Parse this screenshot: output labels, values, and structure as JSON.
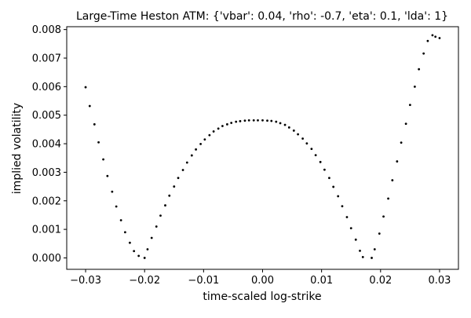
{
  "chart_data": {
    "type": "scatter",
    "title": "Large-Time Heston ATM: {'vbar': 0.04, 'rho': -0.7, 'eta': 0.1, 'lda': 1}",
    "xlabel": "time-scaled log-strike",
    "ylabel": "implied volatility",
    "xlim": [
      -0.0332,
      0.0332
    ],
    "ylim": [
      -0.0004,
      0.0081
    ],
    "xticks": [
      -0.03,
      -0.02,
      -0.01,
      0.0,
      0.01,
      0.02,
      0.03
    ],
    "xtick_labels": [
      "−0.03",
      "−0.02",
      "−0.01",
      "0.00",
      "0.01",
      "0.02",
      "0.03"
    ],
    "yticks": [
      0.0,
      0.001,
      0.002,
      0.003,
      0.004,
      0.005,
      0.006,
      0.007,
      0.008
    ],
    "ytick_labels": [
      "0.000",
      "0.001",
      "0.002",
      "0.003",
      "0.004",
      "0.005",
      "0.006",
      "0.007",
      "0.008"
    ],
    "grid": false,
    "marker_color": "#000000",
    "series": [
      {
        "points": [
          [
            -0.03,
            0.00598
          ],
          [
            -0.0293,
            0.00532
          ],
          [
            -0.0285,
            0.00468
          ],
          [
            -0.0278,
            0.00405
          ],
          [
            -0.027,
            0.00345
          ],
          [
            -0.0263,
            0.00287
          ],
          [
            -0.0255,
            0.00232
          ],
          [
            -0.0248,
            0.0018
          ],
          [
            -0.024,
            0.00132
          ],
          [
            -0.0233,
            0.0009
          ],
          [
            -0.0225,
            0.00053
          ],
          [
            -0.0218,
            0.00024
          ],
          [
            -0.021,
            7e-05
          ],
          [
            -0.02,
            0.0
          ],
          [
            -0.0195,
            0.0003
          ],
          [
            -0.0188,
            0.0007
          ],
          [
            -0.018,
            0.0011
          ],
          [
            -0.0173,
            0.00148
          ],
          [
            -0.0165,
            0.00184
          ],
          [
            -0.0158,
            0.00218
          ],
          [
            -0.015,
            0.0025
          ],
          [
            -0.0143,
            0.0028
          ],
          [
            -0.0135,
            0.00308
          ],
          [
            -0.0128,
            0.00334
          ],
          [
            -0.012,
            0.00359
          ],
          [
            -0.0113,
            0.0038
          ],
          [
            -0.0105,
            0.00399
          ],
          [
            -0.0098,
            0.00415
          ],
          [
            -0.009,
            0.0043
          ],
          [
            -0.0083,
            0.00443
          ],
          [
            -0.0075,
            0.00453
          ],
          [
            -0.0068,
            0.00462
          ],
          [
            -0.006,
            0.00468
          ],
          [
            -0.0053,
            0.00473
          ],
          [
            -0.0045,
            0.00477
          ],
          [
            -0.0038,
            0.00479
          ],
          [
            -0.003,
            0.00481
          ],
          [
            -0.0023,
            0.00482
          ],
          [
            -0.0015,
            0.00482
          ],
          [
            -0.0008,
            0.00482
          ],
          [
            0.0,
            0.00482
          ],
          [
            0.0008,
            0.00481
          ],
          [
            0.0015,
            0.0048
          ],
          [
            0.0023,
            0.00477
          ],
          [
            0.003,
            0.00472
          ],
          [
            0.0038,
            0.00466
          ],
          [
            0.0045,
            0.00457
          ],
          [
            0.0053,
            0.00446
          ],
          [
            0.006,
            0.00433
          ],
          [
            0.0068,
            0.00418
          ],
          [
            0.0075,
            0.00401
          ],
          [
            0.0083,
            0.00382
          ],
          [
            0.009,
            0.0036
          ],
          [
            0.0098,
            0.00336
          ],
          [
            0.0105,
            0.00309
          ],
          [
            0.0113,
            0.0028
          ],
          [
            0.012,
            0.00249
          ],
          [
            0.0128,
            0.00216
          ],
          [
            0.0135,
            0.00181
          ],
          [
            0.0143,
            0.00143
          ],
          [
            0.015,
            0.00104
          ],
          [
            0.0158,
            0.00064
          ],
          [
            0.0165,
            0.00025
          ],
          [
            0.017,
            3e-05
          ],
          [
            0.0185,
            0.0
          ],
          [
            0.019,
            0.0003
          ],
          [
            0.0198,
            0.00085
          ],
          [
            0.0205,
            0.00145
          ],
          [
            0.0213,
            0.00208
          ],
          [
            0.022,
            0.00272
          ],
          [
            0.0228,
            0.00338
          ],
          [
            0.0235,
            0.00404
          ],
          [
            0.0243,
            0.0047
          ],
          [
            0.025,
            0.00536
          ],
          [
            0.0258,
            0.006
          ],
          [
            0.0265,
            0.00661
          ],
          [
            0.0273,
            0.00716
          ],
          [
            0.028,
            0.0076
          ],
          [
            0.0288,
            0.0078
          ],
          [
            0.0293,
            0.00775
          ],
          [
            0.03,
            0.0077
          ]
        ]
      }
    ]
  }
}
